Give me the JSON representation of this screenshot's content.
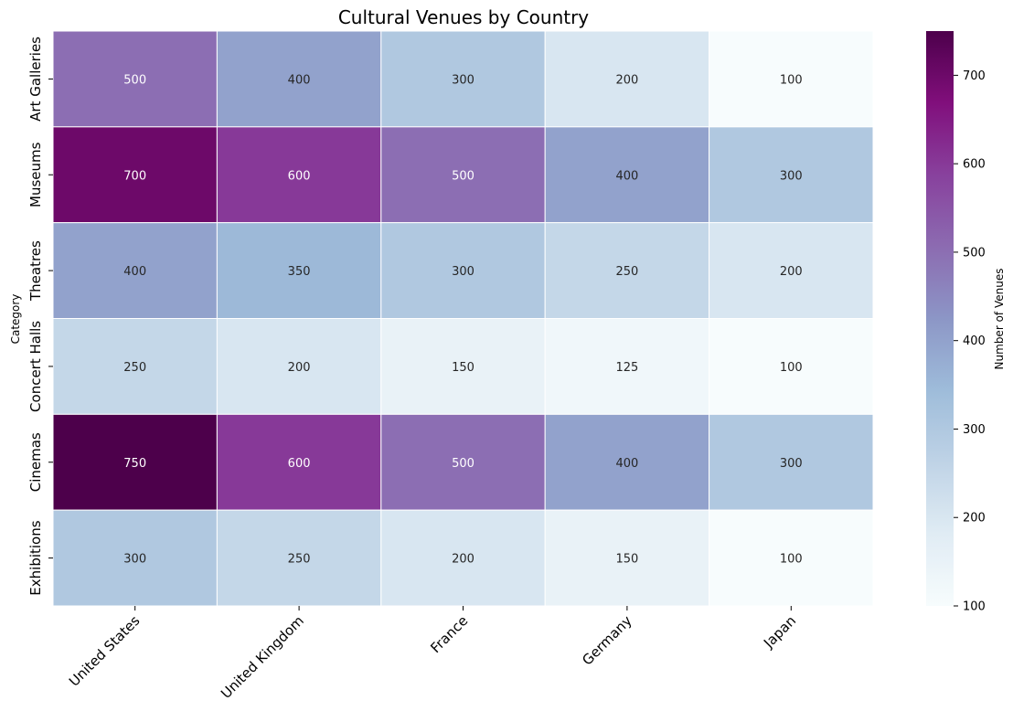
{
  "chart_data": {
    "type": "heatmap",
    "title": "Cultural Venues by Country",
    "xlabel": "",
    "ylabel": "Category",
    "colorbar_label": "Number of Venues",
    "colormap": "BuPu",
    "vmin": 100,
    "vmax": 750,
    "colorbar_ticks": [
      100,
      200,
      300,
      400,
      500,
      600,
      700
    ],
    "x_categories": [
      "United States",
      "United Kingdom",
      "France",
      "Germany",
      "Japan"
    ],
    "y_categories": [
      "Art Galleries",
      "Museums",
      "Theatres",
      "Concert Halls",
      "Cinemas",
      "Exhibitions"
    ],
    "values": [
      [
        500,
        400,
        300,
        200,
        100
      ],
      [
        700,
        600,
        500,
        400,
        300
      ],
      [
        400,
        350,
        300,
        250,
        200
      ],
      [
        250,
        200,
        150,
        125,
        100
      ],
      [
        750,
        600,
        500,
        400,
        300
      ],
      [
        300,
        250,
        200,
        150,
        100
      ]
    ],
    "annotations": true,
    "grid": false
  }
}
